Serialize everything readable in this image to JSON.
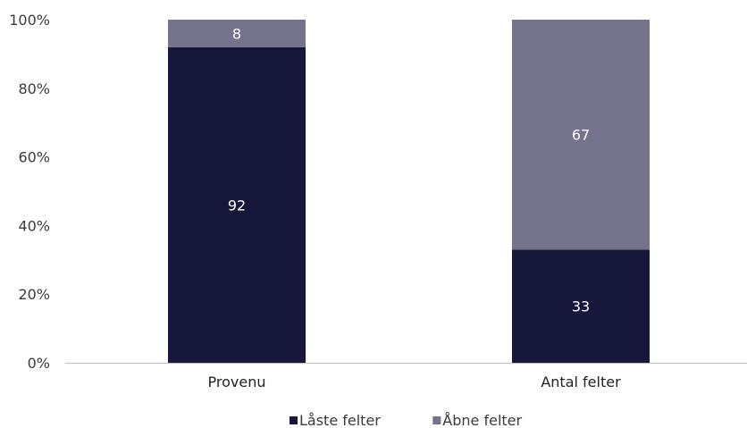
{
  "chart_data": {
    "type": "bar",
    "stacked": true,
    "percent": true,
    "categories": [
      "Provenu",
      "Antal felter"
    ],
    "series": [
      {
        "name": "Låste felter",
        "values": [
          92,
          33
        ],
        "color": "#17163b"
      },
      {
        "name": "Åbne felter",
        "values": [
          8,
          67
        ],
        "color": "#74738b"
      }
    ],
    "yticks": [
      "0%",
      "20%",
      "40%",
      "60%",
      "80%",
      "100%"
    ],
    "ylim": [
      0,
      100
    ],
    "grid": false,
    "legend": "bottom"
  }
}
